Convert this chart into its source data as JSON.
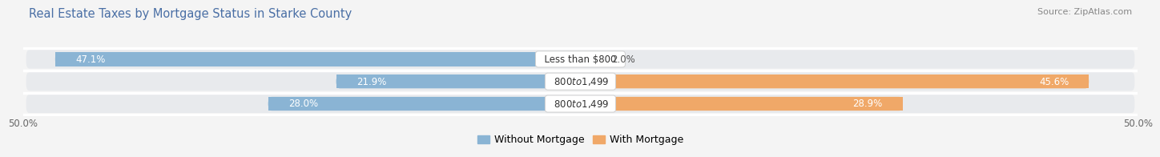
{
  "title": "Real Estate Taxes by Mortgage Status in Starke County",
  "source": "Source: ZipAtlas.com",
  "rows": [
    {
      "label": "Less than $800",
      "without_mortgage": 47.1,
      "with_mortgage": 2.0
    },
    {
      "label": "$800 to $1,499",
      "without_mortgage": 21.9,
      "with_mortgage": 45.6
    },
    {
      "label": "$800 to $1,499",
      "without_mortgage": 28.0,
      "with_mortgage": 28.9
    }
  ],
  "x_max": 50.0,
  "x_min": -50.0,
  "color_without_mortgage": "#8ab4d4",
  "color_with_mortgage": "#f0a868",
  "row_bg_color": "#e8eaed",
  "bg_color": "#f4f4f4",
  "axis_label_fontsize": 8.5,
  "bar_value_fontsize": 8.5,
  "title_fontsize": 10.5,
  "source_fontsize": 8,
  "legend_fontsize": 9,
  "label_fontsize": 8.5
}
